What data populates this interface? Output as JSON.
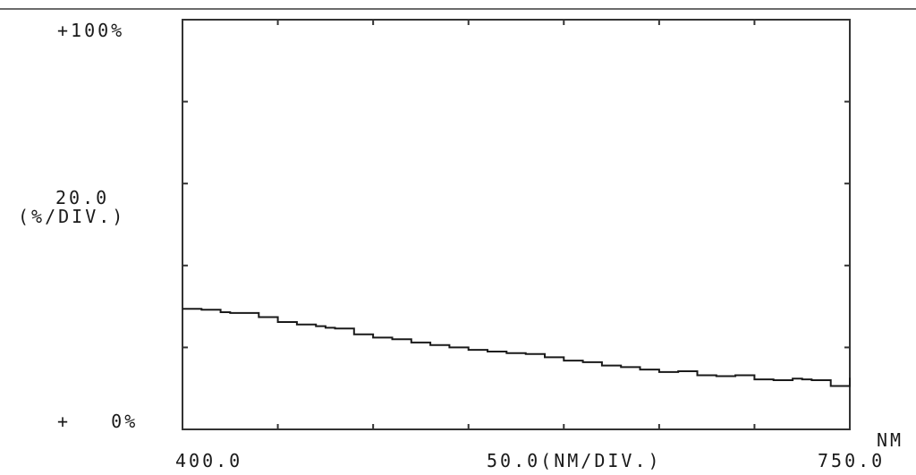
{
  "chart_data": {
    "type": "line",
    "title": "",
    "x": [
      400,
      410,
      420,
      425,
      430,
      440,
      450,
      460,
      470,
      475,
      480,
      490,
      500,
      510,
      520,
      530,
      540,
      550,
      560,
      570,
      580,
      590,
      600,
      610,
      620,
      630,
      640,
      650,
      660,
      670,
      680,
      690,
      700,
      710,
      720,
      725,
      730,
      740,
      750
    ],
    "y": [
      14.7,
      14.6,
      14.3,
      14.2,
      14.2,
      13.7,
      13.1,
      12.8,
      12.6,
      12.4,
      12.3,
      11.6,
      11.2,
      11.0,
      10.6,
      10.3,
      10.0,
      9.7,
      9.5,
      9.3,
      9.2,
      8.8,
      8.4,
      8.2,
      7.8,
      7.6,
      7.3,
      7.0,
      7.1,
      6.6,
      6.5,
      6.6,
      6.1,
      6.0,
      6.2,
      6.1,
      6.0,
      5.3,
      6.3
    ],
    "xlim": [
      400,
      750
    ],
    "ylim": [
      0,
      50
    ],
    "x_tick_step": 50,
    "y_tick_step": 10,
    "grid": false,
    "labels": {
      "y_top": "+100%",
      "y_bottom": "+   0%",
      "y_scale_value": "20.0",
      "y_scale_unit": "(%/DIV.)",
      "x_start": "400.0",
      "x_end": "750.0",
      "x_scale": "50.0(NM/DIV.)",
      "x_unit": "NM"
    },
    "colors": {
      "line": "#1a1a1a",
      "frame": "#333333",
      "rule": "#6b6b6b"
    }
  }
}
